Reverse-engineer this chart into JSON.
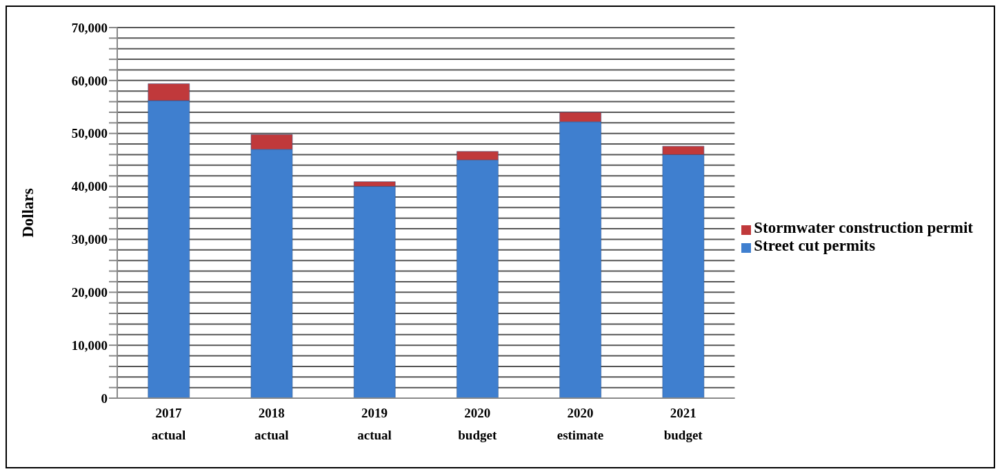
{
  "chart_data": {
    "type": "bar",
    "stacked": true,
    "ylabel": "Dollars",
    "categories": [
      "2017 actual",
      "2018 actual",
      "2019 actual",
      "2020 budget",
      "2020 estimate",
      "2021 budget"
    ],
    "series": [
      {
        "name": "Street cut permits",
        "color": "#3f7fcf",
        "values": [
          56200,
          47000,
          40000,
          45000,
          52200,
          46000
        ]
      },
      {
        "name": "Stormwater construction permit",
        "color": "#c0393b",
        "values": [
          3200,
          2800,
          900,
          1600,
          1800,
          1600
        ]
      }
    ],
    "ylim": [
      0,
      70000
    ],
    "yticks": [
      0,
      {
        "value": 2000,
        "label": null
      },
      {
        "value": 4000,
        "label": null
      },
      {
        "value": 6000,
        "label": null
      },
      {
        "value": 8000,
        "label": null
      },
      {
        "value": 10000,
        "label": "10,000"
      },
      {
        "value": 12000,
        "label": null
      },
      {
        "value": 14000,
        "label": null
      },
      {
        "value": 16000,
        "label": null
      },
      {
        "value": 18000,
        "label": null
      },
      {
        "value": 20000,
        "label": "20,000"
      },
      {
        "value": 22000,
        "label": null
      },
      {
        "value": 24000,
        "label": null
      },
      {
        "value": 26000,
        "label": null
      },
      {
        "value": 28000,
        "label": null
      },
      {
        "value": 30000,
        "label": "30,000"
      },
      {
        "value": 32000,
        "label": null
      },
      {
        "value": 34000,
        "label": null
      },
      {
        "value": 36000,
        "label": null
      },
      {
        "value": 38000,
        "label": null
      },
      {
        "value": 40000,
        "label": "40,000"
      },
      {
        "value": 42000,
        "label": null
      },
      {
        "value": 44000,
        "label": null
      },
      {
        "value": 46000,
        "label": null
      },
      {
        "value": 48000,
        "label": null
      },
      {
        "value": 50000,
        "label": "50,000"
      },
      {
        "value": 52000,
        "label": null
      },
      {
        "value": 54000,
        "label": null
      },
      {
        "value": 56000,
        "label": null
      },
      {
        "value": 58000,
        "label": null
      },
      {
        "value": 60000,
        "label": "60,000"
      },
      {
        "value": 62000,
        "label": null
      },
      {
        "value": 64000,
        "label": null
      },
      {
        "value": 66000,
        "label": null
      },
      {
        "value": 68000,
        "label": null
      },
      {
        "value": 70000,
        "label": "70,000"
      }
    ],
    "grid": "y",
    "legend": "right"
  }
}
